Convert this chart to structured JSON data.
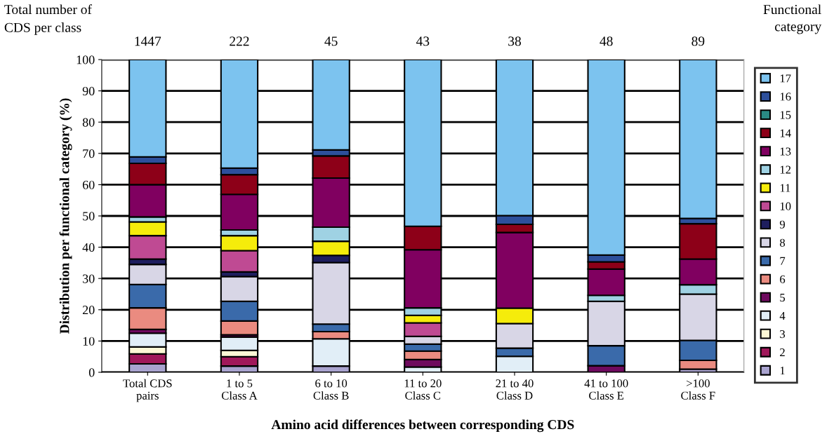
{
  "chart_data": {
    "type": "bar",
    "stacked": true,
    "categories": [
      "Total CDS\npairs",
      "1 to 5\nClass A",
      "6 to 10\nClass B",
      "11 to 20\nClass C",
      "21 to 40\nClass D",
      "41 to 100\nClass E",
      ">100\nClass F"
    ],
    "xlabel": "Amino acid differences between corresponding CDS",
    "ylabel": "Distribution per functional category (%)",
    "legend_title": "Functional category",
    "annotations": [
      "Total number of\nCDS per class",
      "1447",
      "222",
      "45",
      "43",
      "38",
      "48",
      "89"
    ],
    "ylim": [
      0,
      100
    ],
    "yticks": [
      0,
      10,
      20,
      30,
      40,
      50,
      60,
      70,
      80,
      90,
      100
    ],
    "grid": "y",
    "legend": "right",
    "series": [
      {
        "name": "1",
        "color": "#a9a3cf",
        "values": [
          2.7,
          2.0,
          2.0,
          0,
          0,
          0,
          1.0
        ]
      },
      {
        "name": "2",
        "color": "#a0185a",
        "values": [
          3.2,
          3.0,
          0,
          0,
          0,
          0,
          0
        ]
      },
      {
        "name": "3",
        "color": "#fdf8d5",
        "values": [
          2.2,
          2.0,
          0,
          0,
          0,
          0,
          0
        ]
      },
      {
        "name": "4",
        "color": "#e1eef7",
        "values": [
          4.4,
          4.3,
          8.7,
          1.7,
          5.1,
          0,
          0
        ]
      },
      {
        "name": "5",
        "color": "#6e0a5e",
        "values": [
          1.2,
          0.7,
          0,
          2.4,
          0,
          2.1,
          0
        ]
      },
      {
        "name": "6",
        "color": "#ea8b80",
        "values": [
          6.9,
          4.4,
          2.3,
          2.7,
          0,
          0,
          2.8
        ]
      },
      {
        "name": "7",
        "color": "#3a6aaa",
        "values": [
          7.5,
          6.3,
          2.4,
          2.2,
          2.6,
          6.4,
          6.4
        ]
      },
      {
        "name": "8",
        "color": "#d8d6e6",
        "values": [
          6.4,
          7.9,
          19.7,
          2.5,
          7.9,
          14.2,
          14.8
        ]
      },
      {
        "name": "9",
        "color": "#1e1e5e",
        "values": [
          1.7,
          1.5,
          2.3,
          0,
          0,
          0,
          0
        ]
      },
      {
        "name": "10",
        "color": "#bf4a93",
        "values": [
          7.5,
          6.8,
          0,
          4.3,
          0,
          0,
          0
        ]
      },
      {
        "name": "11",
        "color": "#f5ec0b",
        "values": [
          4.4,
          4.8,
          4.5,
          2.4,
          4.9,
          0,
          0
        ]
      },
      {
        "name": "12",
        "color": "#9fd2e3",
        "values": [
          1.6,
          1.8,
          4.5,
          2.4,
          0,
          1.9,
          3.0
        ]
      },
      {
        "name": "13",
        "color": "#800060",
        "values": [
          10.3,
          11.4,
          15.7,
          18.6,
          24.2,
          8.4,
          8.2
        ]
      },
      {
        "name": "14",
        "color": "#8d0018",
        "values": [
          6.8,
          6.3,
          7.1,
          7.5,
          2.6,
          2.3,
          11.3
        ]
      },
      {
        "name": "15",
        "color": "#2a8a85",
        "values": [
          0,
          0,
          0,
          0,
          0,
          0,
          0
        ]
      },
      {
        "name": "16",
        "color": "#2d4f9b",
        "values": [
          2.1,
          2.1,
          1.9,
          0,
          2.8,
          2.2,
          1.7
        ]
      },
      {
        "name": "17",
        "color": "#7cc3ef",
        "values": [
          31.1,
          34.7,
          28.9,
          53.3,
          49.9,
          62.5,
          50.8
        ]
      }
    ]
  }
}
